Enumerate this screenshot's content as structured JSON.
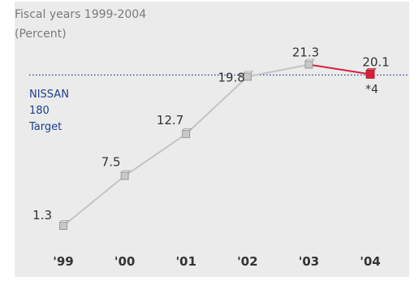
{
  "chart_data": {
    "type": "line",
    "title": "Fiscal years 1999-2004",
    "subtitle": "(Percent)",
    "categories": [
      "'99",
      "'00",
      "'01",
      "'02",
      "'03",
      "'04"
    ],
    "series": [
      {
        "values": [
          1.3,
          7.5,
          12.7,
          19.8,
          21.3,
          20.1
        ],
        "value_labels": [
          "1.3",
          "7.5",
          "12.7",
          "19.8",
          "21.3",
          "20.1"
        ]
      }
    ],
    "target": {
      "label_lines": [
        "NISSAN",
        "180",
        "Target"
      ],
      "value": 20
    },
    "annotation": "*4",
    "ylim": [
      0,
      23
    ],
    "grid": false
  },
  "colors": {
    "panel_background": "#ebebeb",
    "line": "#c4c4c4",
    "highlight_segment": "#d8203a",
    "marker": "#c8c8c8",
    "marker_highlight": "#d8203a",
    "target_line": "#1e3f8c",
    "target_label": "#1e3f8c",
    "title_text": "#7a7a7a",
    "text": "#333333"
  }
}
